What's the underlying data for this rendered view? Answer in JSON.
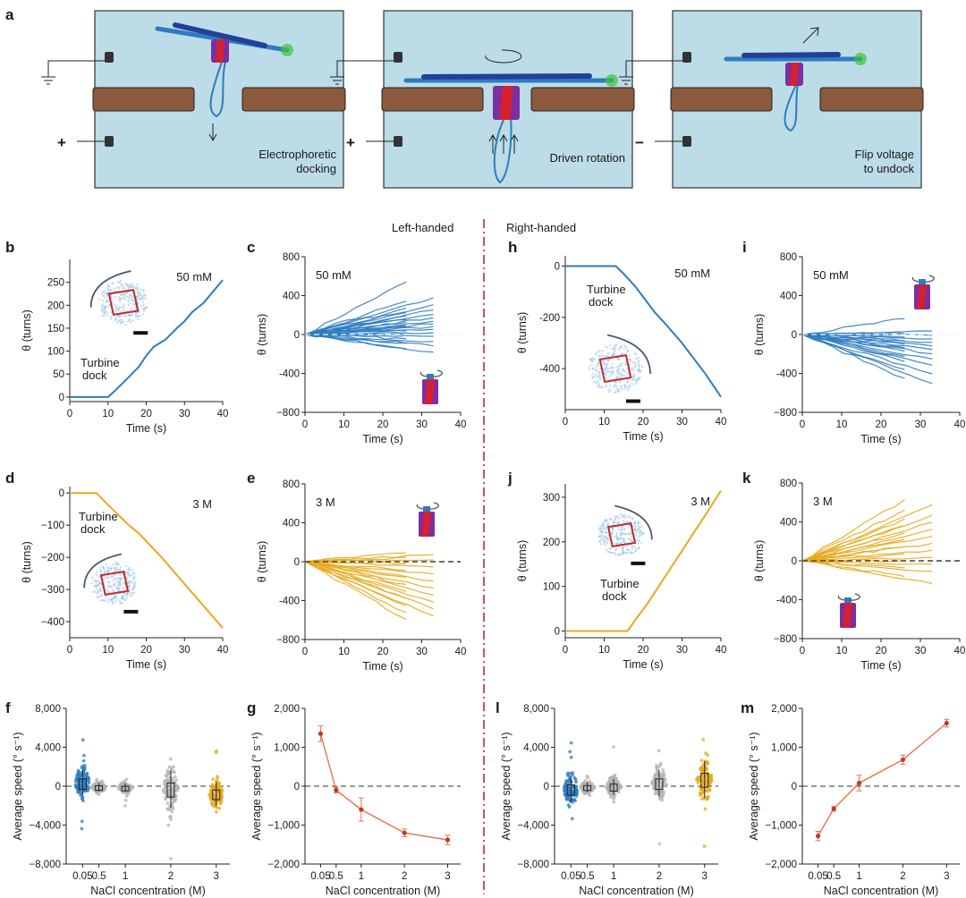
{
  "colors": {
    "blue": "#2e7cc0",
    "gold": "#e6aa1e",
    "gray": "#b4b4b4",
    "orange": "#e0764a",
    "red_arrow": "#c62828",
    "divider": "#c62828",
    "schematic_bg": "#bcdce7",
    "membrane": "#8b5a3c",
    "rod": "#22409a",
    "rod_tip": "#3cc43c"
  },
  "schematics": {
    "panel_label": "a",
    "panels": [
      {
        "caption": [
          "Electrophoretic",
          "docking"
        ],
        "sign": "+"
      },
      {
        "caption": [
          "Driven rotation"
        ],
        "sign": "+"
      },
      {
        "caption": [
          "Flip voltage",
          "to undock"
        ],
        "sign": "−"
      }
    ]
  },
  "headers": {
    "left": "Left-handed",
    "right": "Right-handed"
  },
  "annotations": {
    "turbine_dock": [
      "Turbine",
      "dock"
    ]
  },
  "labels": {
    "theta": "θ (turns)",
    "time": "Time (s)",
    "speed": "Average speed (° s⁻¹)",
    "nacl": "NaCl concentration (M)"
  },
  "chart_data": [
    {
      "panel": "b",
      "type": "line",
      "annotation": "50 mM",
      "xlabel": "Time (s)",
      "ylabel": "θ (turns)",
      "xlim": [
        0,
        40
      ],
      "ylim": [
        -10,
        300
      ],
      "xticks": [
        0,
        10,
        20,
        30,
        40
      ],
      "yticks": [
        0,
        50,
        100,
        150,
        200,
        250
      ],
      "x": [
        0,
        10,
        12,
        15,
        18,
        20,
        22,
        25,
        28,
        30,
        32,
        35,
        38,
        40
      ],
      "y": [
        0,
        0,
        15,
        40,
        65,
        90,
        110,
        125,
        150,
        165,
        185,
        205,
        235,
        255
      ],
      "color": "blue"
    },
    {
      "panel": "c",
      "type": "line",
      "annotation": "50 mM",
      "xlabel": "Time (s)",
      "ylabel": "θ (turns)",
      "xlim": [
        0,
        40
      ],
      "ylim": [
        -800,
        800
      ],
      "xticks": [
        0,
        10,
        20,
        30,
        40
      ],
      "yticks": [
        -800,
        -400,
        0,
        400,
        800
      ],
      "ytick_labels": [
        "−800",
        "-400",
        "0",
        "400",
        "800"
      ],
      "series_endpoints": [
        600,
        420,
        380,
        340,
        300,
        280,
        250,
        230,
        210,
        190,
        170,
        150,
        140,
        120,
        100,
        90,
        80,
        60,
        40,
        20,
        0,
        -20,
        -50,
        -80,
        -100,
        -130,
        -160,
        -200
      ],
      "ensemble_note": "many traces",
      "color": "blue"
    },
    {
      "panel": "h",
      "type": "line",
      "annotation": "50 mM",
      "xlabel": "Time (s)",
      "ylabel": "θ (turns)",
      "xlim": [
        0,
        40
      ],
      "ylim": [
        -560,
        40
      ],
      "xticks": [
        0,
        10,
        20,
        30,
        40
      ],
      "yticks": [
        -400,
        -200,
        0
      ],
      "ytick_labels": [
        "-400",
        "-200",
        "0"
      ],
      "x": [
        0,
        13,
        15,
        18,
        20,
        23,
        26,
        30,
        33,
        36,
        40
      ],
      "y": [
        0,
        0,
        -30,
        -80,
        -120,
        -180,
        -230,
        -300,
        -360,
        -420,
        -510
      ],
      "color": "blue"
    },
    {
      "panel": "i",
      "type": "line",
      "annotation": "50 mM",
      "xlabel": "Time (s)",
      "ylabel": "θ (turns)",
      "xlim": [
        0,
        40
      ],
      "ylim": [
        -800,
        800
      ],
      "xticks": [
        0,
        10,
        20,
        30,
        40
      ],
      "yticks": [
        -800,
        -400,
        0,
        400,
        800
      ],
      "ytick_labels": [
        "−800",
        "-400",
        "0",
        "400",
        "800"
      ],
      "series_endpoints": [
        180,
        40,
        10,
        -10,
        -30,
        -50,
        -70,
        -90,
        -110,
        -130,
        -150,
        -170,
        -190,
        -220,
        -250,
        -280,
        -310,
        -350,
        -400,
        -450,
        -500,
        -560
      ],
      "color": "blue"
    },
    {
      "panel": "d",
      "type": "line",
      "annotation": "3 M",
      "xlabel": "Time (s)",
      "ylabel": "θ (turns)",
      "xlim": [
        0,
        40
      ],
      "ylim": [
        -450,
        20
      ],
      "xticks": [
        0,
        10,
        20,
        30,
        40
      ],
      "yticks": [
        -400,
        -300,
        -200,
        -100,
        0
      ],
      "x": [
        0,
        7,
        9,
        12,
        15,
        18,
        20,
        24,
        28,
        32,
        36,
        40
      ],
      "y": [
        0,
        0,
        -25,
        -60,
        -95,
        -125,
        -150,
        -200,
        -255,
        -310,
        -365,
        -420
      ],
      "color": "gold"
    },
    {
      "panel": "e",
      "type": "line",
      "annotation": "3 M",
      "xlabel": "Time (s)",
      "ylabel": "θ (turns)",
      "xlim": [
        0,
        40
      ],
      "ylim": [
        -800,
        800
      ],
      "xticks": [
        0,
        10,
        20,
        30,
        40
      ],
      "yticks": [
        -800,
        -400,
        0,
        400,
        800
      ],
      "ytick_labels": [
        "−800",
        "-400",
        "0",
        "400",
        "800"
      ],
      "series_endpoints": [
        100,
        80,
        50,
        20,
        -20,
        -60,
        -100,
        -140,
        -180,
        -220,
        -260,
        -300,
        -340,
        -380,
        -420,
        -460,
        -500,
        -540,
        -580,
        -620,
        -660
      ],
      "color": "gold"
    },
    {
      "panel": "j",
      "type": "line",
      "annotation": "3 M",
      "xlabel": "Time (s)",
      "ylabel": "θ (turns)",
      "xlim": [
        0,
        40
      ],
      "ylim": [
        -15,
        330
      ],
      "xticks": [
        0,
        10,
        20,
        30,
        40
      ],
      "yticks": [
        0,
        100,
        200,
        300
      ],
      "x": [
        0,
        16,
        18,
        21,
        24,
        27,
        30,
        33,
        36,
        40
      ],
      "y": [
        0,
        0,
        25,
        60,
        100,
        140,
        180,
        220,
        260,
        315
      ],
      "color": "gold"
    },
    {
      "panel": "k",
      "type": "line",
      "annotation": "3 M",
      "xlabel": "Time (s)",
      "ylabel": "θ (turns)",
      "xlim": [
        0,
        40
      ],
      "ylim": [
        -800,
        800
      ],
      "xticks": [
        0,
        10,
        20,
        30,
        40
      ],
      "yticks": [
        -800,
        -400,
        0,
        400,
        800
      ],
      "ytick_labels": [
        "−800",
        "-400",
        "0",
        "400",
        "800"
      ],
      "series_endpoints": [
        700,
        640,
        580,
        520,
        480,
        440,
        400,
        360,
        320,
        280,
        240,
        200,
        160,
        120,
        80,
        40,
        0,
        -40,
        -80,
        -120,
        -180,
        -260
      ],
      "color": "gold"
    },
    {
      "panel": "f",
      "type": "scatter",
      "xlabel": "NaCl concentration (M)",
      "ylabel": "Average speed (° s⁻¹)",
      "ylim": [
        -8000,
        8000
      ],
      "yticks": [
        -8000,
        -4000,
        0,
        4000,
        8000
      ],
      "ytick_labels": [
        "−8,000",
        "−4,000",
        "0",
        "4,000",
        "8,000"
      ],
      "categories": [
        "0.05",
        "0.5",
        "1",
        "2",
        "3"
      ],
      "medians": [
        300,
        -100,
        -150,
        -300,
        -800
      ],
      "spread": [
        2500,
        800,
        800,
        3500,
        2200
      ],
      "colors": [
        "blue",
        "gray",
        "gray",
        "gray",
        "gold"
      ]
    },
    {
      "panel": "g",
      "type": "line",
      "xlabel": "NaCl concentration (M)",
      "ylabel": "Average speed (° s⁻¹)",
      "ylim": [
        -2000,
        2000
      ],
      "yticks": [
        -2000,
        -1000,
        0,
        1000,
        2000
      ],
      "ytick_labels": [
        "−2,000",
        "−1,000",
        "0",
        "1,000",
        "2,000"
      ],
      "categories": [
        "0.05",
        "0.5",
        "1",
        "2",
        "3"
      ],
      "values": [
        1350,
        -100,
        -600,
        -1200,
        -1380
      ],
      "errors": [
        200,
        70,
        300,
        100,
        120
      ],
      "color": "orange"
    },
    {
      "panel": "l",
      "type": "scatter",
      "xlabel": "NaCl concentration (M)",
      "ylabel": "Average speed (° s⁻¹)",
      "ylim": [
        -8000,
        8000
      ],
      "yticks": [
        -8000,
        -4000,
        0,
        4000,
        8000
      ],
      "ytick_labels": [
        "−8,000",
        "−4,000",
        "0",
        "4,000",
        "8,000"
      ],
      "categories": [
        "0.05",
        "0.5",
        "1",
        "2",
        "3"
      ],
      "medians": [
        -300,
        -100,
        -50,
        300,
        700
      ],
      "spread": [
        2500,
        900,
        1500,
        2500,
        3500
      ],
      "colors": [
        "blue",
        "gray",
        "gray",
        "gray",
        "gold"
      ]
    },
    {
      "panel": "m",
      "type": "line",
      "xlabel": "NaCl concentration (M)",
      "ylabel": "Average speed (° s⁻¹)",
      "ylim": [
        -2000,
        2000
      ],
      "yticks": [
        -2000,
        -1000,
        0,
        1000,
        2000
      ],
      "ytick_labels": [
        "−2,000",
        "−1,000",
        "0",
        "1,000",
        "2,000"
      ],
      "categories": [
        "0.05",
        "0.5",
        "1",
        "2",
        "3"
      ],
      "values": [
        -1280,
        -580,
        80,
        680,
        1620
      ],
      "errors": [
        120,
        60,
        200,
        120,
        100
      ],
      "color": "orange"
    }
  ]
}
